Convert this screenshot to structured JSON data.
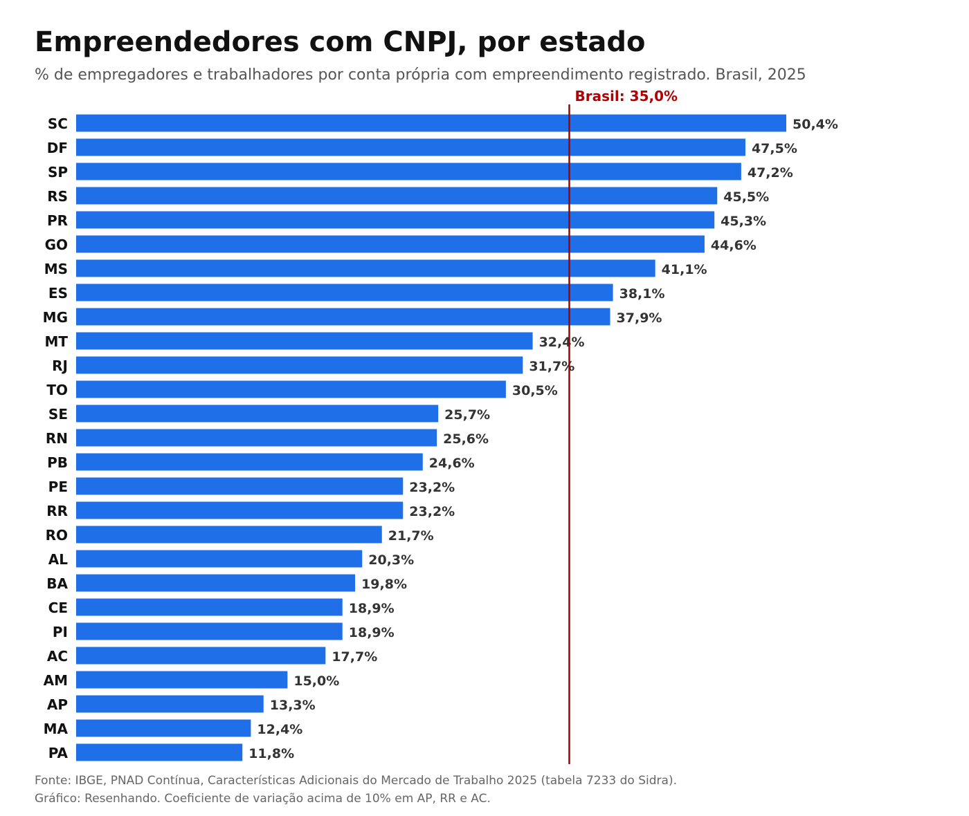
{
  "colors": {
    "bar": "#1f6fe8",
    "reference": "#a30000",
    "reference_text": "#b30000",
    "label": "#333333",
    "category": "#111111"
  },
  "chart_data": {
    "type": "bar",
    "orientation": "horizontal",
    "title": "Empreendedores com CNPJ, por estado",
    "subtitle": "% de empregadores e trabalhadores por conta própria com empreendimento registrado. Brasil, 2025",
    "categories": [
      "SC",
      "DF",
      "SP",
      "RS",
      "PR",
      "GO",
      "MS",
      "ES",
      "MG",
      "MT",
      "RJ",
      "TO",
      "SE",
      "RN",
      "PB",
      "PE",
      "RR",
      "RO",
      "AL",
      "BA",
      "CE",
      "PI",
      "AC",
      "AM",
      "AP",
      "MA",
      "PA"
    ],
    "values": [
      50.4,
      47.5,
      47.2,
      45.5,
      45.3,
      44.6,
      41.1,
      38.1,
      37.9,
      32.4,
      31.7,
      30.5,
      25.7,
      25.6,
      24.6,
      23.2,
      23.2,
      21.7,
      20.3,
      19.8,
      18.9,
      18.9,
      17.7,
      15.0,
      13.3,
      12.4,
      11.8
    ],
    "value_labels": [
      "50,4%",
      "47,5%",
      "47,2%",
      "45,5%",
      "45,3%",
      "44,6%",
      "41,1%",
      "38,1%",
      "37,9%",
      "32,4%",
      "31,7%",
      "30,5%",
      "25,7%",
      "25,6%",
      "24,6%",
      "23,2%",
      "23,2%",
      "21,7%",
      "20,3%",
      "19,8%",
      "18,9%",
      "18,9%",
      "17,7%",
      "15,0%",
      "13,3%",
      "12,4%",
      "11,8%"
    ],
    "reference_line": {
      "value": 35.0,
      "label": "Brasil: 35,0%"
    },
    "xlim": [
      0,
      50.4
    ],
    "grid": false,
    "legend": "none"
  },
  "footer": {
    "line1": "Fonte: IBGE, PNAD Contínua, Características Adicionais do Mercado de Trabalho 2025 (tabela 7233 do Sidra).",
    "line2": "Gráfico: Resenhando. Coeficiente de variação acima de 10% em AP, RR e AC."
  }
}
